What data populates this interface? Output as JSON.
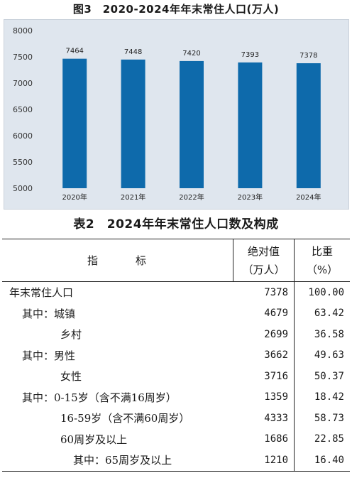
{
  "figure_title": "图3　2020-2024年年末常住人口(万人)",
  "chart_data": {
    "type": "bar",
    "categories": [
      "2020年",
      "2021年",
      "2022年",
      "2023年",
      "2024年"
    ],
    "values": [
      7464,
      7448,
      7420,
      7393,
      7378
    ],
    "data_labels": [
      "7464",
      "7448",
      "7420",
      "7393",
      "7378"
    ],
    "yticks": [
      "5000",
      "5500",
      "6000",
      "6500",
      "7000",
      "7500",
      "8000"
    ],
    "ylim": [
      5000,
      8000
    ],
    "grid": false,
    "title": "图3　2020-2024年年末常住人口(万人)",
    "xlabel": "",
    "ylabel": "",
    "bar_color": "#0e6aab"
  },
  "table": {
    "title": "表2　2024年年末常住人口数及构成",
    "header": {
      "indicator": "指　　　标",
      "absolute_line1": "绝对值",
      "absolute_line2": "（万人）",
      "share_line1": "比重",
      "share_line2": "（%）"
    },
    "rows": [
      {
        "label": "年末常住人口",
        "value": "7378",
        "share": "100.00"
      },
      {
        "label": "其中：城镇",
        "value": "4679",
        "share": "63.42"
      },
      {
        "label": "乡村",
        "value": "2699",
        "share": "36.58"
      },
      {
        "label": "其中：男性",
        "value": "3662",
        "share": "49.63"
      },
      {
        "label": "女性",
        "value": "3716",
        "share": "50.37"
      },
      {
        "label": "其中：0-15岁（含不满16周岁）",
        "value": "1359",
        "share": "18.42"
      },
      {
        "label": "16-59岁（含不满60周岁）",
        "value": "4333",
        "share": "58.73"
      },
      {
        "label": "60周岁及以上",
        "value": "1686",
        "share": "22.85"
      },
      {
        "label": "其中：65周岁及以上",
        "value": "1210",
        "share": "16.40"
      }
    ]
  }
}
